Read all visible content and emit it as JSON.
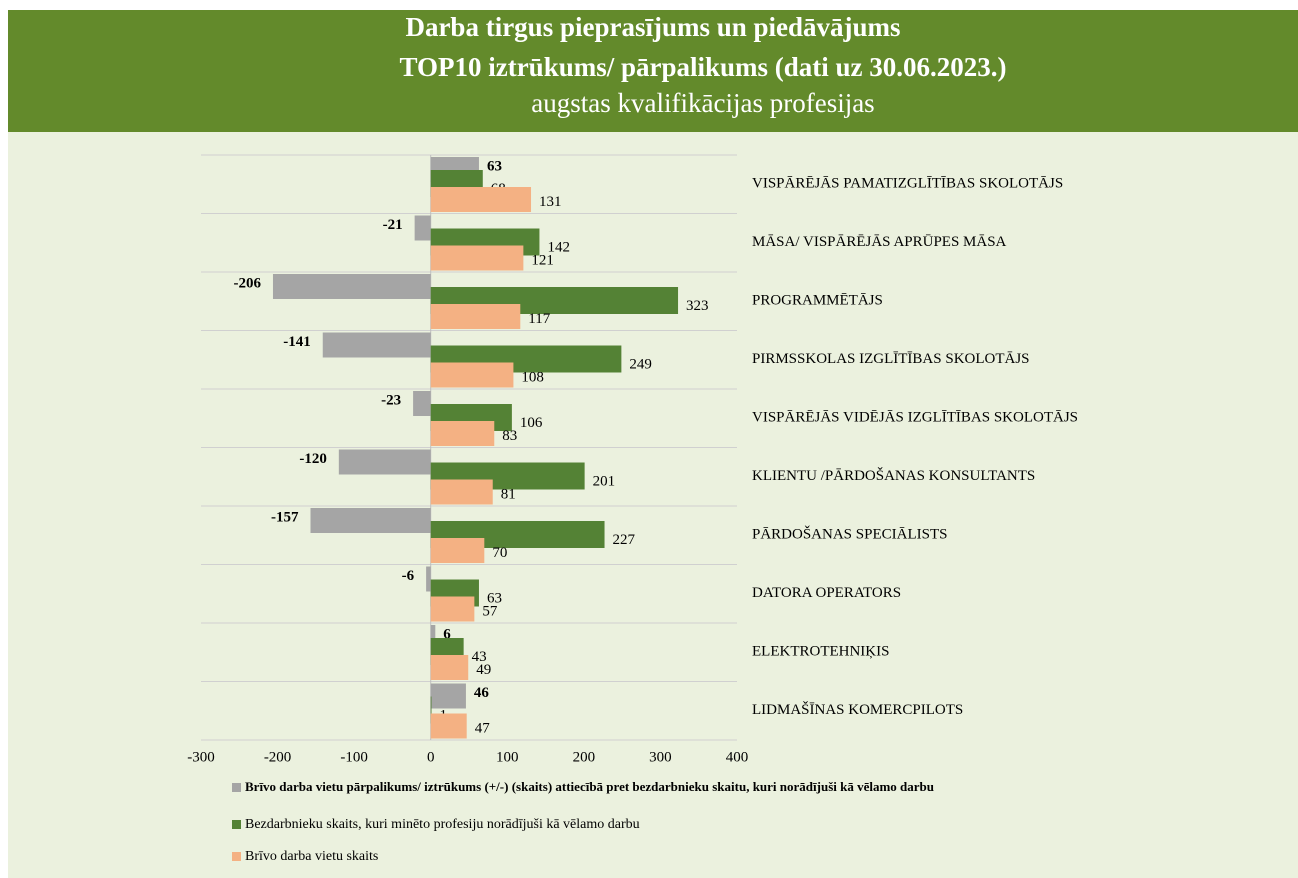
{
  "chart_data": {
    "type": "hbar",
    "title": "Darba tirgus pieprasījums un piedāvājums",
    "title2": "TOP10 iztrūkums/ pārpalikums (dati uz 30.06.2023.)",
    "subtitle": "augstas kvalifikācijas profesijas",
    "categories": [
      "VISPĀRĒJĀS PAMATIZGLĪTĪBAS SKOLOTĀJS",
      "MĀSA/ VISPĀRĒJĀS APRŪPES MĀSA",
      "PROGRAMMĒTĀJS",
      "PIRMSSKOLAS IZGLĪTĪBAS SKOLOTĀJS",
      "VISPĀRĒJĀS VIDĒJĀS IZGLĪTĪBAS SKOLOTĀJS",
      "KLIENTU /PĀRDOŠANAS KONSULTANTS",
      "PĀRDOŠANAS SPECIĀLISTS",
      "DATORA OPERATORS",
      "ELEKTROTEHNIĶIS",
      "LIDMAŠĪNAS KOMERCPILOTS"
    ],
    "series": [
      {
        "name": "Brīvo darba vietu pārpalikums/ iztrūkums (+/-) (skaits) attiecībā pret bezdarbnieku skaitu, kuri norādījuši kā vēlamo darbu",
        "color": "#a5a5a5",
        "values": [
          63,
          -21,
          -206,
          -141,
          -23,
          -120,
          -157,
          -6,
          6,
          46
        ]
      },
      {
        "name": "Bezdarbnieku skaits, kuri minēto profesiju norādījuši kā vēlamo darbu",
        "color": "#548235",
        "values": [
          68,
          142,
          323,
          249,
          106,
          201,
          227,
          63,
          43,
          1
        ]
      },
      {
        "name": "Brīvo darba vietu skaits",
        "color": "#f4b183",
        "values": [
          131,
          121,
          117,
          108,
          83,
          81,
          70,
          57,
          49,
          47
        ]
      }
    ],
    "xlim": [
      -300,
      400
    ],
    "xticks": [
      -300,
      -200,
      -100,
      0,
      100,
      200,
      300,
      400
    ],
    "grid": true
  }
}
